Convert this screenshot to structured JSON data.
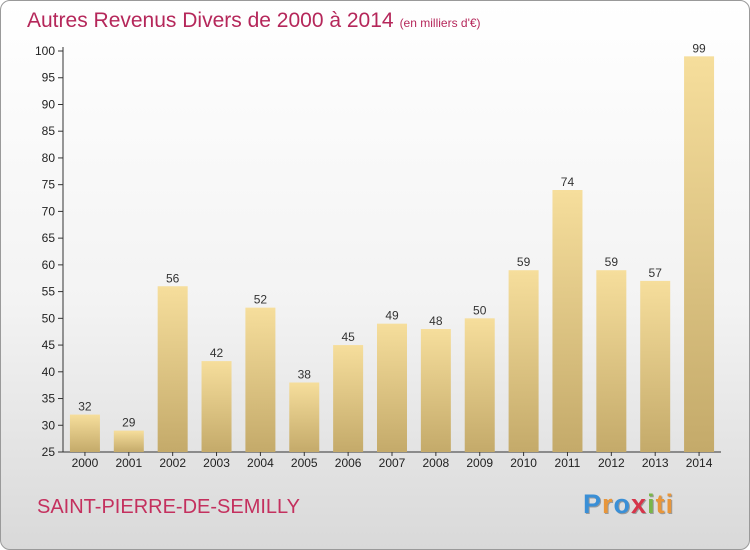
{
  "header": {
    "title": "Autres Revenus Divers de 2000 à 2014",
    "subtitle": "(en milliers d'€)"
  },
  "footer": {
    "commune": "SAINT-PIERRE-DE-SEMILLY",
    "logo_letters": [
      "P",
      "r",
      "o",
      "x",
      "i",
      "ti"
    ]
  },
  "colors": {
    "title": "#b5275a",
    "bar_light": "#f5dc99",
    "bar_dark": "#c6ad6e"
  },
  "chart_data": {
    "type": "bar",
    "title": "Autres Revenus Divers de 2000 à 2014",
    "subtitle": "(en milliers d'€)",
    "categories": [
      "2000",
      "2001",
      "2002",
      "2003",
      "2004",
      "2005",
      "2006",
      "2007",
      "2008",
      "2009",
      "2010",
      "2011",
      "2012",
      "2013",
      "2014"
    ],
    "values": [
      32,
      29,
      56,
      42,
      52,
      38,
      45,
      49,
      48,
      50,
      59,
      74,
      59,
      57,
      99
    ],
    "ylim": [
      25,
      100
    ],
    "yticks": [
      25,
      30,
      35,
      40,
      45,
      50,
      55,
      60,
      65,
      70,
      75,
      80,
      85,
      90,
      95,
      100
    ],
    "grid": false
  }
}
